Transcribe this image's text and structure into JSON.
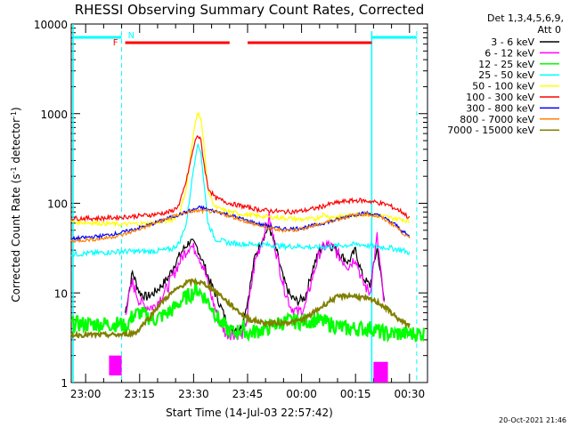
{
  "chart_data": {
    "type": "line",
    "title": "RHESSI Observing Summary Count Rates, Corrected",
    "xlabel": "Start Time (14-Jul-03 22:57:42)",
    "ylabel_main": "Corrected Count Rate (s",
    "ylabel_sup1": "-1",
    "ylabel_mid": " detector",
    "ylabel_sup2": "-1",
    "ylabel_end": ")",
    "yscale": "log",
    "ylim": [
      1,
      10000
    ],
    "xlim_minutes": [
      -4,
      80
    ],
    "y_ticks": [
      {
        "value": 1,
        "label": "1"
      },
      {
        "value": 10,
        "label": "10"
      },
      {
        "value": 100,
        "label": "100"
      },
      {
        "value": 1000,
        "label": "1000"
      },
      {
        "value": 10000,
        "label": "10000"
      }
    ],
    "x_ticks": [
      {
        "minute": 0,
        "label": "23:00"
      },
      {
        "minute": 15,
        "label": "23:15"
      },
      {
        "minute": 30,
        "label": "23:30"
      },
      {
        "minute": 45,
        "label": "23:45"
      },
      {
        "minute": 60,
        "label": "00:00"
      },
      {
        "minute": 75,
        "label": "00:15"
      },
      {
        "minute": 90,
        "label": "00:30"
      }
    ],
    "detectors": "Det 1,3,4,5,6,9,",
    "attenuator": "Att 0",
    "footer_date": "20-Oct-2021 21:46",
    "flag_labels": {
      "f": "F",
      "n": "N"
    },
    "series": [
      {
        "name": "3 - 6 keV",
        "color": "#000000",
        "points": [
          [
            11,
            6
          ],
          [
            13,
            17
          ],
          [
            15,
            10
          ],
          [
            17,
            9
          ],
          [
            19,
            10
          ],
          [
            21,
            12
          ],
          [
            23,
            15
          ],
          [
            25,
            22
          ],
          [
            27,
            30
          ],
          [
            29,
            38
          ],
          [
            31,
            32
          ],
          [
            33,
            20
          ],
          [
            35,
            12
          ],
          [
            37,
            8
          ],
          [
            39,
            5
          ],
          [
            40,
            4
          ],
          [
            43,
            4
          ],
          [
            45,
            8
          ],
          [
            47,
            25
          ],
          [
            49,
            40
          ],
          [
            51,
            55
          ],
          [
            53,
            30
          ],
          [
            55,
            14
          ],
          [
            57,
            9
          ],
          [
            59,
            8
          ],
          [
            61,
            9
          ],
          [
            63,
            18
          ],
          [
            65,
            30
          ],
          [
            67,
            35
          ],
          [
            69,
            32
          ],
          [
            71,
            26
          ],
          [
            73,
            22
          ],
          [
            75,
            30
          ],
          [
            77,
            15
          ],
          [
            79,
            12
          ],
          [
            81,
            32
          ],
          [
            83,
            8
          ]
        ]
      },
      {
        "name": "6 - 12 keV",
        "color": "#ff00ff",
        "points": [
          [
            11,
            6
          ],
          [
            13,
            13
          ],
          [
            15,
            8
          ],
          [
            17,
            7
          ],
          [
            19,
            7
          ],
          [
            21,
            9
          ],
          [
            23,
            12
          ],
          [
            25,
            18
          ],
          [
            27,
            26
          ],
          [
            29,
            34
          ],
          [
            31,
            29
          ],
          [
            33,
            18
          ],
          [
            35,
            9
          ],
          [
            37,
            5
          ],
          [
            39,
            3.5
          ],
          [
            41,
            3.5
          ],
          [
            44,
            3.5
          ],
          [
            45,
            6
          ],
          [
            47,
            22
          ],
          [
            49,
            38
          ],
          [
            51,
            70
          ],
          [
            53,
            28
          ],
          [
            55,
            12
          ],
          [
            57,
            7
          ],
          [
            59,
            6
          ],
          [
            61,
            7
          ],
          [
            63,
            15
          ],
          [
            65,
            28
          ],
          [
            67,
            35
          ],
          [
            69,
            31
          ],
          [
            71,
            24
          ],
          [
            73,
            20
          ],
          [
            75,
            25
          ],
          [
            77,
            13
          ],
          [
            79,
            10
          ],
          [
            81,
            42
          ],
          [
            83,
            7
          ]
        ]
      },
      {
        "name": "12 - 25 keV",
        "color": "#00ff00",
        "points": [
          [
            -4,
            4.5
          ],
          [
            4,
            4.5
          ],
          [
            10,
            4.5
          ],
          [
            11,
            4
          ],
          [
            13,
            5.5
          ],
          [
            15,
            6
          ],
          [
            17,
            5.5
          ],
          [
            19,
            5
          ],
          [
            21,
            5.5
          ],
          [
            23,
            6
          ],
          [
            25,
            7
          ],
          [
            27,
            8.5
          ],
          [
            29,
            9.5
          ],
          [
            31,
            11
          ],
          [
            33,
            9
          ],
          [
            35,
            7
          ],
          [
            37,
            5
          ],
          [
            39,
            4
          ],
          [
            41,
            3.6
          ],
          [
            44,
            4
          ],
          [
            45,
            3.5
          ],
          [
            47,
            3.7
          ],
          [
            50,
            4
          ],
          [
            53,
            4.5
          ],
          [
            56,
            4.8
          ],
          [
            60,
            4.8
          ],
          [
            64,
            5
          ],
          [
            68,
            4.5
          ],
          [
            72,
            4
          ],
          [
            76,
            4
          ],
          [
            80,
            4
          ],
          [
            82,
            3.6
          ],
          [
            84,
            3.5
          ],
          [
            94,
            3.5
          ]
        ]
      },
      {
        "name": "25 - 50 keV",
        "color": "#00ffff",
        "points": [
          [
            -4,
            27
          ],
          [
            4,
            28
          ],
          [
            10,
            29
          ],
          [
            14,
            29
          ],
          [
            18,
            29
          ],
          [
            22,
            30
          ],
          [
            24,
            31
          ],
          [
            26,
            36
          ],
          [
            28,
            60
          ],
          [
            30,
            250
          ],
          [
            31,
            450
          ],
          [
            32,
            380
          ],
          [
            33,
            150
          ],
          [
            34,
            60
          ],
          [
            36,
            40
          ],
          [
            40,
            36
          ],
          [
            44,
            35
          ],
          [
            48,
            35
          ],
          [
            52,
            34
          ],
          [
            56,
            33
          ],
          [
            60,
            33
          ],
          [
            64,
            32
          ],
          [
            68,
            33
          ],
          [
            72,
            34
          ],
          [
            76,
            35
          ],
          [
            80,
            33
          ],
          [
            84,
            32
          ],
          [
            88,
            30
          ],
          [
            90,
            28
          ]
        ]
      },
      {
        "name": "50 - 100 keV",
        "color": "#ffff00",
        "points": [
          [
            -4,
            62
          ],
          [
            4,
            60
          ],
          [
            10,
            58
          ],
          [
            14,
            59
          ],
          [
            18,
            60
          ],
          [
            22,
            63
          ],
          [
            24,
            66
          ],
          [
            26,
            75
          ],
          [
            28,
            150
          ],
          [
            30,
            600
          ],
          [
            31,
            1050
          ],
          [
            32,
            900
          ],
          [
            33,
            400
          ],
          [
            34,
            140
          ],
          [
            36,
            90
          ],
          [
            40,
            80
          ],
          [
            44,
            75
          ],
          [
            48,
            72
          ],
          [
            52,
            70
          ],
          [
            56,
            68
          ],
          [
            60,
            66
          ],
          [
            64,
            67
          ],
          [
            66,
            75
          ],
          [
            68,
            70
          ],
          [
            72,
            72
          ],
          [
            76,
            76
          ],
          [
            80,
            74
          ],
          [
            84,
            70
          ],
          [
            88,
            66
          ],
          [
            90,
            62
          ]
        ]
      },
      {
        "name": "100 - 300 keV",
        "color": "#ff0000",
        "points": [
          [
            -4,
            68
          ],
          [
            4,
            68
          ],
          [
            10,
            70
          ],
          [
            14,
            72
          ],
          [
            18,
            74
          ],
          [
            22,
            78
          ],
          [
            24,
            82
          ],
          [
            26,
            95
          ],
          [
            28,
            180
          ],
          [
            30,
            420
          ],
          [
            31,
            580
          ],
          [
            32,
            500
          ],
          [
            33,
            260
          ],
          [
            34,
            150
          ],
          [
            36,
            115
          ],
          [
            40,
            100
          ],
          [
            44,
            92
          ],
          [
            48,
            85
          ],
          [
            52,
            82
          ],
          [
            56,
            80
          ],
          [
            60,
            82
          ],
          [
            64,
            88
          ],
          [
            68,
            98
          ],
          [
            72,
            105
          ],
          [
            76,
            108
          ],
          [
            80,
            104
          ],
          [
            84,
            96
          ],
          [
            88,
            80
          ],
          [
            90,
            68
          ]
        ]
      },
      {
        "name": "300 - 800 keV",
        "color": "#0000ff",
        "points": [
          [
            -4,
            40
          ],
          [
            4,
            43
          ],
          [
            10,
            47
          ],
          [
            14,
            52
          ],
          [
            18,
            58
          ],
          [
            22,
            66
          ],
          [
            26,
            75
          ],
          [
            30,
            85
          ],
          [
            32,
            90
          ],
          [
            34,
            85
          ],
          [
            38,
            78
          ],
          [
            42,
            70
          ],
          [
            46,
            62
          ],
          [
            50,
            56
          ],
          [
            54,
            52
          ],
          [
            58,
            52
          ],
          [
            62,
            55
          ],
          [
            66,
            60
          ],
          [
            70,
            66
          ],
          [
            74,
            74
          ],
          [
            78,
            78
          ],
          [
            82,
            72
          ],
          [
            86,
            58
          ],
          [
            90,
            42
          ]
        ]
      },
      {
        "name": "800 - 7000 keV",
        "color": "#ff8000",
        "points": [
          [
            -4,
            38
          ],
          [
            4,
            40
          ],
          [
            10,
            44
          ],
          [
            14,
            50
          ],
          [
            18,
            57
          ],
          [
            22,
            66
          ],
          [
            26,
            75
          ],
          [
            30,
            82
          ],
          [
            34,
            82
          ],
          [
            38,
            76
          ],
          [
            42,
            68
          ],
          [
            46,
            60
          ],
          [
            50,
            54
          ],
          [
            54,
            50
          ],
          [
            58,
            50
          ],
          [
            62,
            54
          ],
          [
            66,
            60
          ],
          [
            70,
            66
          ],
          [
            74,
            73
          ],
          [
            78,
            76
          ],
          [
            82,
            70
          ],
          [
            86,
            56
          ],
          [
            90,
            40
          ]
        ]
      },
      {
        "name": "7000 - 15000 keV",
        "color": "#808000",
        "points": [
          [
            -4,
            3.4
          ],
          [
            4,
            3.4
          ],
          [
            10,
            3.4
          ],
          [
            14,
            3.6
          ],
          [
            16,
            4.5
          ],
          [
            18,
            5.5
          ],
          [
            20,
            7
          ],
          [
            22,
            8.5
          ],
          [
            24,
            10
          ],
          [
            26,
            11.5
          ],
          [
            28,
            13
          ],
          [
            30,
            13.5
          ],
          [
            32,
            13
          ],
          [
            34,
            12
          ],
          [
            36,
            10.5
          ],
          [
            38,
            9
          ],
          [
            40,
            7.5
          ],
          [
            42,
            6.5
          ],
          [
            44,
            5.5
          ],
          [
            46,
            5
          ],
          [
            50,
            4.6
          ],
          [
            54,
            4.6
          ],
          [
            58,
            4.8
          ],
          [
            60,
            5
          ],
          [
            62,
            5.5
          ],
          [
            64,
            6.3
          ],
          [
            66,
            7.2
          ],
          [
            68,
            8.2
          ],
          [
            70,
            9
          ],
          [
            72,
            9.3
          ],
          [
            74,
            9.3
          ],
          [
            76,
            9
          ],
          [
            78,
            8.6
          ],
          [
            80,
            8.2
          ],
          [
            82,
            7.5
          ],
          [
            84,
            6.5
          ],
          [
            86,
            5.5
          ],
          [
            88,
            4.7
          ],
          [
            90,
            4.4
          ]
        ]
      }
    ]
  }
}
